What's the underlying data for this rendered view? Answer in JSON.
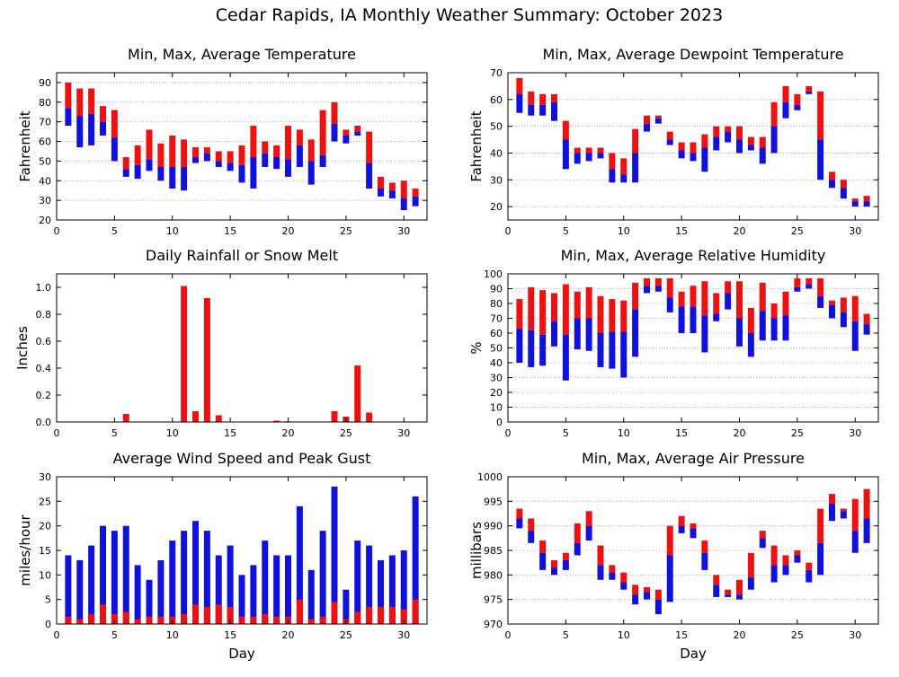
{
  "title": "Cedar Rapids, IA Monthly Weather Summary: October 2023",
  "colors": {
    "max_part": "#ee1111",
    "min_part": "#1111dd",
    "grid": "#999999"
  },
  "chart_data": [
    {
      "id": "temp",
      "type": "bar",
      "style": "range",
      "title": "Min, Max, Average Temperature",
      "xlabel": "",
      "ylabel": "Fahrenheit",
      "xlim": [
        0,
        32
      ],
      "ylim": [
        20,
        95
      ],
      "yticks": [
        20,
        30,
        40,
        50,
        60,
        70,
        80,
        90
      ],
      "xticks": [
        0,
        5,
        10,
        15,
        20,
        25,
        30
      ],
      "grid": true,
      "days": [
        1,
        2,
        3,
        4,
        5,
        6,
        7,
        8,
        9,
        10,
        11,
        12,
        13,
        14,
        15,
        16,
        17,
        18,
        19,
        20,
        21,
        22,
        23,
        24,
        25,
        26,
        27,
        28,
        29,
        30,
        31
      ],
      "min": [
        68,
        57,
        58,
        63,
        50,
        42,
        41,
        45,
        40,
        36,
        35,
        49,
        50,
        47,
        45,
        39,
        36,
        47,
        46,
        42,
        47,
        38,
        47,
        60,
        59,
        63,
        36,
        32,
        31,
        25,
        27
      ],
      "avg": [
        77,
        73,
        74,
        70,
        62,
        46,
        48,
        51,
        47,
        47,
        47,
        52,
        54,
        50,
        49,
        48,
        52,
        54,
        52,
        51,
        58,
        50,
        53,
        69,
        63,
        65,
        49,
        36,
        35,
        31,
        32
      ],
      "max": [
        90,
        87,
        87,
        78,
        76,
        52,
        58,
        66,
        59,
        63,
        61,
        57,
        57,
        55,
        55,
        58,
        68,
        60,
        58,
        68,
        66,
        61,
        76,
        80,
        66,
        68,
        65,
        42,
        39,
        40,
        36
      ]
    },
    {
      "id": "dewpoint",
      "type": "bar",
      "style": "range",
      "title": "Min, Max, Average Dewpoint Temperature",
      "xlabel": "",
      "ylabel": "Fahrenheit",
      "xlim": [
        0,
        32
      ],
      "ylim": [
        15,
        70
      ],
      "yticks": [
        20,
        30,
        40,
        50,
        60,
        70
      ],
      "xticks": [
        0,
        5,
        10,
        15,
        20,
        25,
        30
      ],
      "grid": true,
      "days": [
        1,
        2,
        3,
        4,
        5,
        6,
        7,
        8,
        9,
        10,
        11,
        12,
        13,
        14,
        15,
        16,
        17,
        18,
        19,
        20,
        21,
        22,
        23,
        24,
        25,
        26,
        27,
        28,
        29,
        30,
        31
      ],
      "min": [
        55,
        54,
        54,
        52,
        34,
        36,
        37,
        38,
        29,
        29,
        29,
        48,
        51,
        43,
        38,
        37,
        33,
        41,
        44,
        40,
        41,
        36,
        40,
        53,
        56,
        62,
        30,
        27,
        23,
        20,
        20
      ],
      "avg": [
        62,
        58,
        58,
        59,
        45,
        40,
        40,
        40,
        34,
        32,
        40,
        51,
        53,
        45,
        41,
        40,
        42,
        46,
        48,
        45,
        43,
        42,
        50,
        59,
        58,
        63,
        45,
        30,
        27,
        22,
        22
      ],
      "max": [
        68,
        63,
        62,
        62,
        52,
        42,
        42,
        42,
        40,
        38,
        49,
        54,
        54,
        48,
        44,
        44,
        47,
        50,
        50,
        50,
        46,
        46,
        59,
        65,
        62,
        65,
        63,
        33,
        30,
        23,
        24
      ]
    },
    {
      "id": "rain",
      "type": "bar",
      "style": "single",
      "title": "Daily Rainfall or Snow Melt",
      "xlabel": "",
      "ylabel": "Inches",
      "xlim": [
        0,
        32
      ],
      "ylim": [
        0,
        1.1
      ],
      "yticks": [
        0.0,
        0.2,
        0.4,
        0.6,
        0.8,
        1.0
      ],
      "ytick_labels": [
        "0.0",
        "0.2",
        "0.4",
        "0.6",
        "0.8",
        "1.0"
      ],
      "xticks": [
        0,
        5,
        10,
        15,
        20,
        25,
        30
      ],
      "grid": false,
      "days": [
        1,
        2,
        3,
        4,
        5,
        6,
        7,
        8,
        9,
        10,
        11,
        12,
        13,
        14,
        15,
        16,
        17,
        18,
        19,
        20,
        21,
        22,
        23,
        24,
        25,
        26,
        27,
        28,
        29,
        30,
        31
      ],
      "values": [
        0,
        0,
        0,
        0,
        0,
        0.06,
        0,
        0,
        0,
        0,
        1.01,
        0.08,
        0.92,
        0.05,
        0,
        0,
        0,
        0,
        0.01,
        0.005,
        0,
        0,
        0,
        0.08,
        0.04,
        0.42,
        0.07,
        0,
        0,
        0,
        0
      ]
    },
    {
      "id": "humidity",
      "type": "bar",
      "style": "range",
      "title": "Min, Max, Average Relative Humidity",
      "xlabel": "",
      "ylabel": "%",
      "xlim": [
        0,
        32
      ],
      "ylim": [
        0,
        100
      ],
      "yticks": [
        0,
        10,
        20,
        30,
        40,
        50,
        60,
        70,
        80,
        90,
        100
      ],
      "xticks": [
        0,
        5,
        10,
        15,
        20,
        25,
        30
      ],
      "grid": true,
      "days": [
        1,
        2,
        3,
        4,
        5,
        6,
        7,
        8,
        9,
        10,
        11,
        12,
        13,
        14,
        15,
        16,
        17,
        18,
        19,
        20,
        21,
        22,
        23,
        24,
        25,
        26,
        27,
        28,
        29,
        30,
        31
      ],
      "min": [
        40,
        37,
        38,
        51,
        28,
        49,
        48,
        37,
        36,
        30,
        44,
        87,
        88,
        74,
        60,
        60,
        47,
        68,
        76,
        51,
        44,
        55,
        55,
        55,
        88,
        90,
        77,
        70,
        64,
        48,
        59
      ],
      "avg": [
        63,
        62,
        59,
        68,
        59,
        70,
        70,
        60,
        61,
        61,
        76,
        92,
        92,
        84,
        78,
        78,
        72,
        73,
        87,
        70,
        60,
        75,
        70,
        72,
        91,
        93,
        85,
        79,
        74,
        68,
        66
      ],
      "max": [
        83,
        91,
        89,
        87,
        93,
        88,
        91,
        85,
        83,
        82,
        94,
        97,
        97,
        97,
        88,
        92,
        95,
        87,
        95,
        95,
        77,
        94,
        80,
        88,
        97,
        97,
        97,
        82,
        84,
        85,
        73
      ]
    },
    {
      "id": "wind",
      "type": "bar",
      "style": "overlay",
      "title": "Average Wind Speed and Peak Gust",
      "xlabel": "Day",
      "ylabel": "miles/hour",
      "xlim": [
        0,
        32
      ],
      "ylim": [
        0,
        30
      ],
      "yticks": [
        0,
        5,
        10,
        15,
        20,
        25,
        30
      ],
      "xticks": [
        0,
        5,
        10,
        15,
        20,
        25,
        30
      ],
      "grid": false,
      "days": [
        1,
        2,
        3,
        4,
        5,
        6,
        7,
        8,
        9,
        10,
        11,
        12,
        13,
        14,
        15,
        16,
        17,
        18,
        19,
        20,
        21,
        22,
        23,
        24,
        25,
        26,
        27,
        28,
        29,
        30,
        31
      ],
      "peak_gust": [
        14,
        13,
        16,
        20,
        19,
        20,
        12,
        9,
        13,
        17,
        19,
        21,
        19,
        14,
        16,
        10,
        12,
        17,
        14,
        14,
        24,
        11,
        19,
        28,
        7,
        17,
        16,
        13,
        14,
        15,
        26
      ],
      "avg_speed": [
        1.5,
        1,
        2,
        4,
        2,
        2.5,
        1,
        1.5,
        1.5,
        1.5,
        2,
        4,
        3.5,
        4,
        3.5,
        1.5,
        1.5,
        2,
        1.5,
        1.5,
        5,
        1,
        1.5,
        4.5,
        1,
        2.5,
        3.5,
        3.5,
        3.5,
        3,
        5
      ]
    },
    {
      "id": "pressure",
      "type": "bar",
      "style": "range",
      "title": "Min, Max, Average Air Pressure",
      "xlabel": "Day",
      "ylabel": "millibars",
      "xlim": [
        0,
        32
      ],
      "ylim": [
        970,
        1000
      ],
      "yticks": [
        970,
        975,
        980,
        985,
        990,
        995,
        1000
      ],
      "xticks": [
        0,
        5,
        10,
        15,
        20,
        25,
        30
      ],
      "grid": true,
      "days": [
        1,
        2,
        3,
        4,
        5,
        6,
        7,
        8,
        9,
        10,
        11,
        12,
        13,
        14,
        15,
        16,
        17,
        18,
        19,
        20,
        21,
        22,
        23,
        24,
        25,
        26,
        27,
        28,
        29,
        30,
        31
      ],
      "min": [
        989.5,
        986.5,
        981,
        980,
        981,
        984,
        987,
        979,
        979,
        977,
        974,
        975,
        972,
        974.5,
        988.5,
        987.5,
        981,
        975.5,
        975.5,
        975,
        977,
        985.5,
        978.5,
        980,
        982.5,
        978.5,
        980,
        991,
        991.5,
        984.5,
        986.5
      ],
      "avg": [
        991.5,
        989,
        984.5,
        981.5,
        983,
        986.5,
        990,
        982,
        980.5,
        978.5,
        976,
        976.5,
        975,
        984,
        990,
        989.5,
        984.5,
        978,
        976,
        976,
        979.5,
        987.5,
        982,
        982,
        984,
        981,
        986.5,
        994.5,
        993,
        989,
        991.5
      ],
      "max": [
        993.5,
        991.5,
        987,
        983,
        984.5,
        990.5,
        993,
        986,
        982,
        980.5,
        978,
        977.5,
        977,
        990,
        992,
        990.5,
        987,
        980,
        977,
        979,
        984.5,
        989,
        986,
        984,
        985,
        982.5,
        993.5,
        996.5,
        993.5,
        995.5,
        997.5
      ]
    }
  ]
}
